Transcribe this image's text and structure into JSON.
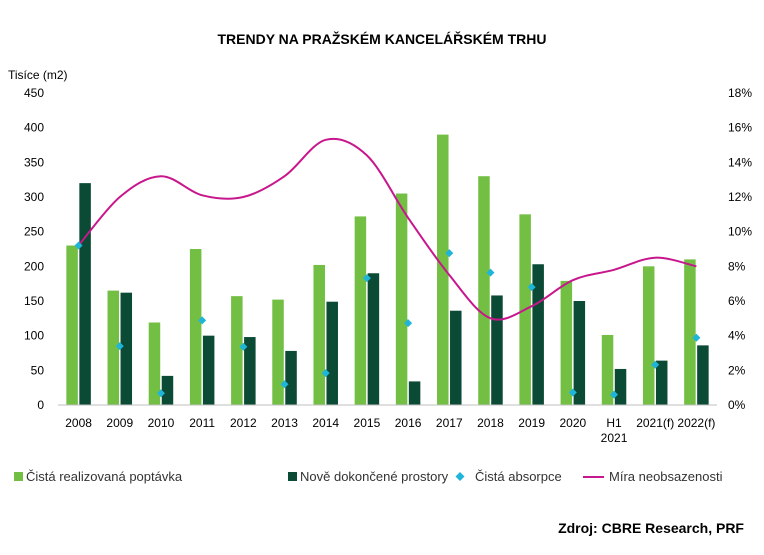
{
  "chart_data": {
    "type": "bar",
    "title": "TRENDY NA PRAŽSKÉM KANCELÁŘSKÉM TRHU",
    "ylabel": "Tisíce (m2)",
    "ylim": [
      0,
      450
    ],
    "y_ticks": [
      "0",
      "50",
      "100",
      "150",
      "200",
      "250",
      "300",
      "350",
      "400",
      "450"
    ],
    "y2lim": [
      0,
      18
    ],
    "y2_ticks": [
      "0%",
      "2%",
      "4%",
      "6%",
      "8%",
      "10%",
      "12%",
      "14%",
      "16%",
      "18%"
    ],
    "categories": [
      "2008",
      "2009",
      "2010",
      "2011",
      "2012",
      "2013",
      "2014",
      "2015",
      "2016",
      "2017",
      "2018",
      "2019",
      "2020",
      "H1 2021",
      "2021(f)",
      "2022(f)"
    ],
    "category_lines": [
      [
        "2008"
      ],
      [
        "2009"
      ],
      [
        "2010"
      ],
      [
        "2011"
      ],
      [
        "2012"
      ],
      [
        "2013"
      ],
      [
        "2014"
      ],
      [
        "2015"
      ],
      [
        "2016"
      ],
      [
        "2017"
      ],
      [
        "2018"
      ],
      [
        "2019"
      ],
      [
        "2020"
      ],
      [
        "H1",
        "2021"
      ],
      [
        "2021(f)"
      ],
      [
        "2022(f)"
      ]
    ],
    "series": [
      {
        "name": "Čistá realizovaná poptávka",
        "kind": "bar",
        "axis": "left",
        "color": "#72bf44",
        "values": [
          230,
          165,
          119,
          225,
          157,
          152,
          202,
          272,
          305,
          390,
          330,
          275,
          179,
          101,
          200,
          210
        ]
      },
      {
        "name": "Nově dokončené prostory",
        "kind": "bar",
        "axis": "left",
        "color": "#0b4a34",
        "values": [
          320,
          162,
          42,
          100,
          98,
          78,
          149,
          190,
          34,
          136,
          158,
          203,
          150,
          52,
          64,
          86
        ]
      },
      {
        "name": "Čistá absorpce",
        "kind": "marker",
        "axis": "left",
        "color": "#1fb5d9",
        "values": [
          230,
          85,
          17,
          122,
          84,
          30,
          46,
          183,
          118,
          219,
          191,
          170,
          18,
          15,
          58,
          97
        ]
      },
      {
        "name": "Míra neobsazenosti",
        "kind": "line",
        "axis": "right",
        "color": "#c8178c",
        "values": [
          9.2,
          12.0,
          13.2,
          12.1,
          12.0,
          13.2,
          15.3,
          14.4,
          10.8,
          7.5,
          5.0,
          5.7,
          7.2,
          7.8,
          8.5,
          8.0
        ]
      }
    ],
    "grid": false,
    "legend_position": "bottom"
  },
  "source": "Zdroj: CBRE Research, PRF"
}
